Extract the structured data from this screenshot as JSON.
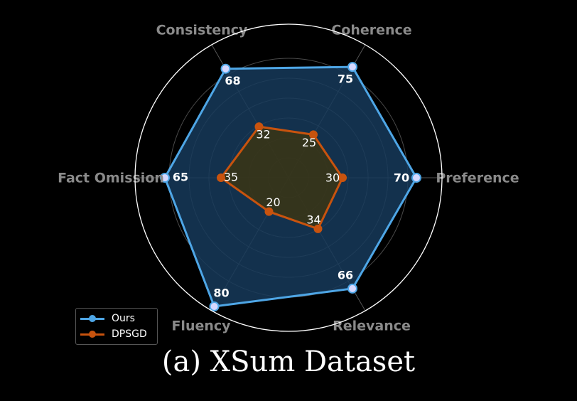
{
  "caption": "(a) XSum Dataset",
  "chart_data": {
    "type": "radar",
    "axes": [
      "Preference",
      "Coherence",
      "Consistency",
      "Fact Omission",
      "Fluency",
      "Relevance"
    ],
    "series": [
      {
        "name": "Ours",
        "values": [
          70,
          75,
          68,
          65,
          80,
          66
        ],
        "color": "#4ea6e6",
        "fill": "#163a5a"
      },
      {
        "name": "DPSGD",
        "values": [
          30,
          25,
          32,
          35,
          20,
          34
        ],
        "color": "#c8530e",
        "fill": "#3b3514"
      }
    ],
    "grid": true,
    "legend": "bottom-left"
  }
}
